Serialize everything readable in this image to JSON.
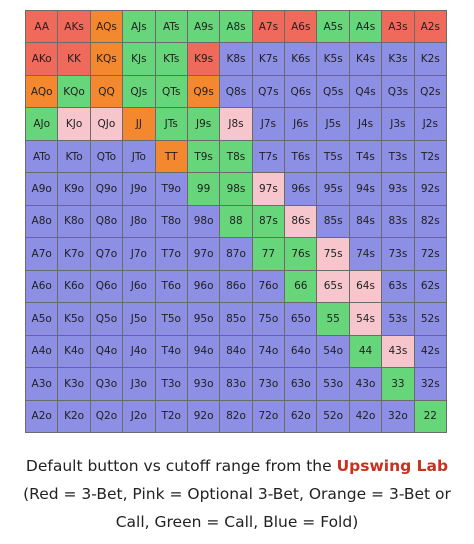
{
  "legend_colors": {
    "R": "#ef6a5a",
    "P": "#f7c6cc",
    "O": "#f3882e",
    "G": "#67d67a",
    "B": "#8c8fe3"
  },
  "grid": {
    "cells": [
      [
        [
          "AA",
          "R"
        ],
        [
          "AKs",
          "R"
        ],
        [
          "AQs",
          "O"
        ],
        [
          "AJs",
          "G"
        ],
        [
          "ATs",
          "G"
        ],
        [
          "A9s",
          "G"
        ],
        [
          "A8s",
          "G"
        ],
        [
          "A7s",
          "R"
        ],
        [
          "A6s",
          "R"
        ],
        [
          "A5s",
          "G"
        ],
        [
          "A4s",
          "G"
        ],
        [
          "A3s",
          "R"
        ],
        [
          "A2s",
          "R"
        ]
      ],
      [
        [
          "AKo",
          "R"
        ],
        [
          "KK",
          "R"
        ],
        [
          "KQs",
          "O"
        ],
        [
          "KJs",
          "G"
        ],
        [
          "KTs",
          "G"
        ],
        [
          "K9s",
          "R"
        ],
        [
          "K8s",
          "B"
        ],
        [
          "K7s",
          "B"
        ],
        [
          "K6s",
          "B"
        ],
        [
          "K5s",
          "B"
        ],
        [
          "K4s",
          "B"
        ],
        [
          "K3s",
          "B"
        ],
        [
          "K2s",
          "B"
        ]
      ],
      [
        [
          "AQo",
          "O"
        ],
        [
          "KQo",
          "G"
        ],
        [
          "QQ",
          "O"
        ],
        [
          "QJs",
          "G"
        ],
        [
          "QTs",
          "G"
        ],
        [
          "Q9s",
          "O"
        ],
        [
          "Q8s",
          "B"
        ],
        [
          "Q7s",
          "B"
        ],
        [
          "Q6s",
          "B"
        ],
        [
          "Q5s",
          "B"
        ],
        [
          "Q4s",
          "B"
        ],
        [
          "Q3s",
          "B"
        ],
        [
          "Q2s",
          "B"
        ]
      ],
      [
        [
          "AJo",
          "G"
        ],
        [
          "KJo",
          "P"
        ],
        [
          "QJo",
          "P"
        ],
        [
          "JJ",
          "O"
        ],
        [
          "JTs",
          "G"
        ],
        [
          "J9s",
          "G"
        ],
        [
          "J8s",
          "P"
        ],
        [
          "J7s",
          "B"
        ],
        [
          "J6s",
          "B"
        ],
        [
          "J5s",
          "B"
        ],
        [
          "J4s",
          "B"
        ],
        [
          "J3s",
          "B"
        ],
        [
          "J2s",
          "B"
        ]
      ],
      [
        [
          "ATo",
          "B"
        ],
        [
          "KTo",
          "B"
        ],
        [
          "QTo",
          "B"
        ],
        [
          "JTo",
          "B"
        ],
        [
          "TT",
          "O"
        ],
        [
          "T9s",
          "G"
        ],
        [
          "T8s",
          "G"
        ],
        [
          "T7s",
          "B"
        ],
        [
          "T6s",
          "B"
        ],
        [
          "T5s",
          "B"
        ],
        [
          "T4s",
          "B"
        ],
        [
          "T3s",
          "B"
        ],
        [
          "T2s",
          "B"
        ]
      ],
      [
        [
          "A9o",
          "B"
        ],
        [
          "K9o",
          "B"
        ],
        [
          "Q9o",
          "B"
        ],
        [
          "J9o",
          "B"
        ],
        [
          "T9o",
          "B"
        ],
        [
          "99",
          "G"
        ],
        [
          "98s",
          "G"
        ],
        [
          "97s",
          "P"
        ],
        [
          "96s",
          "B"
        ],
        [
          "95s",
          "B"
        ],
        [
          "94s",
          "B"
        ],
        [
          "93s",
          "B"
        ],
        [
          "92s",
          "B"
        ]
      ],
      [
        [
          "A8o",
          "B"
        ],
        [
          "K8o",
          "B"
        ],
        [
          "Q8o",
          "B"
        ],
        [
          "J8o",
          "B"
        ],
        [
          "T8o",
          "B"
        ],
        [
          "98o",
          "B"
        ],
        [
          "88",
          "G"
        ],
        [
          "87s",
          "G"
        ],
        [
          "86s",
          "P"
        ],
        [
          "85s",
          "B"
        ],
        [
          "84s",
          "B"
        ],
        [
          "83s",
          "B"
        ],
        [
          "82s",
          "B"
        ]
      ],
      [
        [
          "A7o",
          "B"
        ],
        [
          "K7o",
          "B"
        ],
        [
          "Q7o",
          "B"
        ],
        [
          "J7o",
          "B"
        ],
        [
          "T7o",
          "B"
        ],
        [
          "97o",
          "B"
        ],
        [
          "87o",
          "B"
        ],
        [
          "77",
          "G"
        ],
        [
          "76s",
          "G"
        ],
        [
          "75s",
          "P"
        ],
        [
          "74s",
          "B"
        ],
        [
          "73s",
          "B"
        ],
        [
          "72s",
          "B"
        ]
      ],
      [
        [
          "A6o",
          "B"
        ],
        [
          "K6o",
          "B"
        ],
        [
          "Q6o",
          "B"
        ],
        [
          "J6o",
          "B"
        ],
        [
          "T6o",
          "B"
        ],
        [
          "96o",
          "B"
        ],
        [
          "86o",
          "B"
        ],
        [
          "76o",
          "B"
        ],
        [
          "66",
          "G"
        ],
        [
          "65s",
          "P"
        ],
        [
          "64s",
          "P"
        ],
        [
          "63s",
          "B"
        ],
        [
          "62s",
          "B"
        ]
      ],
      [
        [
          "A5o",
          "B"
        ],
        [
          "K5o",
          "B"
        ],
        [
          "Q5o",
          "B"
        ],
        [
          "J5o",
          "B"
        ],
        [
          "T5o",
          "B"
        ],
        [
          "95o",
          "B"
        ],
        [
          "85o",
          "B"
        ],
        [
          "75o",
          "B"
        ],
        [
          "65o",
          "B"
        ],
        [
          "55",
          "G"
        ],
        [
          "54s",
          "P"
        ],
        [
          "53s",
          "B"
        ],
        [
          "52s",
          "B"
        ]
      ],
      [
        [
          "A4o",
          "B"
        ],
        [
          "K4o",
          "B"
        ],
        [
          "Q4o",
          "B"
        ],
        [
          "J4o",
          "B"
        ],
        [
          "T4o",
          "B"
        ],
        [
          "94o",
          "B"
        ],
        [
          "84o",
          "B"
        ],
        [
          "74o",
          "B"
        ],
        [
          "64o",
          "B"
        ],
        [
          "54o",
          "B"
        ],
        [
          "44",
          "G"
        ],
        [
          "43s",
          "P"
        ],
        [
          "42s",
          "B"
        ]
      ],
      [
        [
          "A3o",
          "B"
        ],
        [
          "K3o",
          "B"
        ],
        [
          "Q3o",
          "B"
        ],
        [
          "J3o",
          "B"
        ],
        [
          "T3o",
          "B"
        ],
        [
          "93o",
          "B"
        ],
        [
          "83o",
          "B"
        ],
        [
          "73o",
          "B"
        ],
        [
          "63o",
          "B"
        ],
        [
          "53o",
          "B"
        ],
        [
          "43o",
          "B"
        ],
        [
          "33",
          "G"
        ],
        [
          "32s",
          "B"
        ]
      ],
      [
        [
          "A2o",
          "B"
        ],
        [
          "K2o",
          "B"
        ],
        [
          "Q2o",
          "B"
        ],
        [
          "J2o",
          "B"
        ],
        [
          "T2o",
          "B"
        ],
        [
          "92o",
          "B"
        ],
        [
          "82o",
          "B"
        ],
        [
          "72o",
          "B"
        ],
        [
          "62o",
          "B"
        ],
        [
          "52o",
          "B"
        ],
        [
          "42o",
          "B"
        ],
        [
          "32o",
          "B"
        ],
        [
          "22",
          "G"
        ]
      ]
    ]
  },
  "caption": {
    "part1": "Default button vs cutoff range from the ",
    "lab_name": "Upswing Lab",
    "part2": " (Red = 3-Bet, Pink = Optional 3-Bet, Orange = 3-Bet or Call, Green = Call, Blue = Fold)"
  }
}
